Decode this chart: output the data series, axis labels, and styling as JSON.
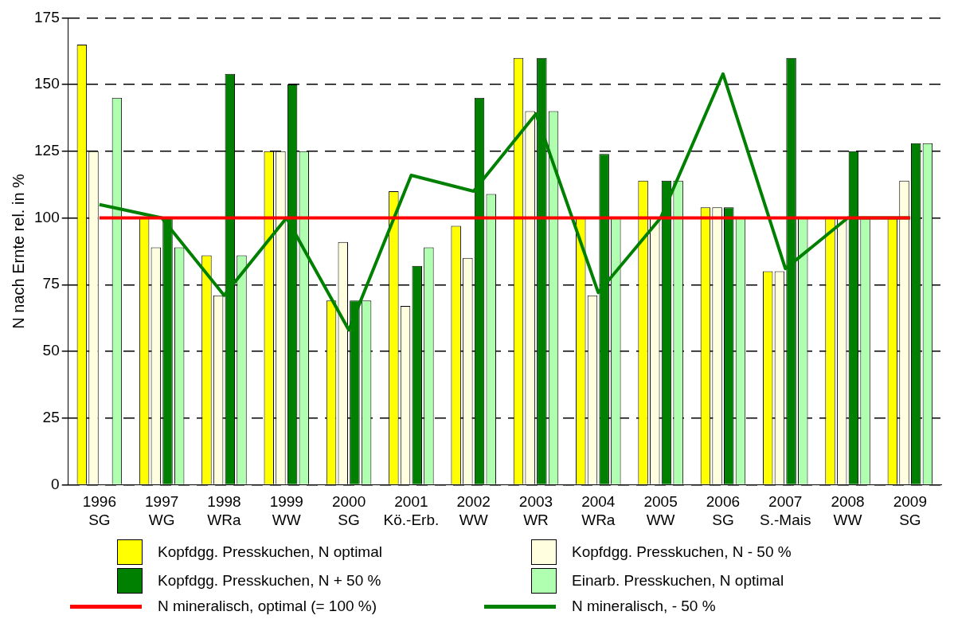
{
  "chart_data": {
    "type": "bar",
    "ylabel": "N nach Ernte rel. in %",
    "categories": [
      "1996\nSG",
      "1997\nWG",
      "1998\nWRa",
      "1999\nWW",
      "2000\nSG",
      "2001\nKö.-Erb.",
      "2002\nWW",
      "2003\nWR",
      "2004\nWRa",
      "2005\nWW",
      "2006\nSG",
      "2007\nS.-Mais",
      "2008\nWW",
      "2009\nSG"
    ],
    "series": [
      {
        "name": "Kopfdgg. Presskuchen, N optimal",
        "color": "#ffff00",
        "values": [
          165,
          100,
          86,
          125,
          69,
          110,
          97,
          160,
          100,
          114,
          104,
          80,
          100,
          100
        ]
      },
      {
        "name": "Kopfdgg. Presskuchen, N - 50 %",
        "color": "#ffffe0",
        "values": [
          125,
          89,
          71,
          125,
          91,
          67,
          85,
          140,
          71,
          100,
          104,
          80,
          100,
          114
        ]
      },
      {
        "name": "Kopfdgg. Presskuchen, N + 50 %",
        "color": "#008000",
        "values": [
          null,
          100,
          154,
          150,
          69,
          82,
          145,
          160,
          124,
          114,
          104,
          160,
          125,
          128
        ]
      },
      {
        "name": "Einarb. Presskuchen, N optimal",
        "color": "#b0ffb0",
        "values": [
          145,
          89,
          86,
          125,
          69,
          89,
          109,
          140,
          100,
          114,
          100,
          100,
          100,
          128
        ]
      },
      {
        "name": "N mineralisch, optimal (= 100 %)",
        "type": "line",
        "color": "#ff0000",
        "values": [
          100,
          100,
          100,
          100,
          100,
          100,
          100,
          100,
          100,
          100,
          100,
          100,
          100,
          100
        ]
      },
      {
        "name": "N mineralisch, - 50 %",
        "type": "line",
        "color": "#008000",
        "values": [
          105,
          100,
          71,
          100,
          58,
          116,
          110,
          139,
          72,
          100,
          154,
          81,
          100,
          100
        ]
      }
    ],
    "ylim": [
      0,
      175
    ],
    "yticks": [
      0,
      25,
      50,
      75,
      100,
      125,
      150,
      175
    ],
    "grid": "y",
    "legend": "bottom",
    "marker": "none"
  }
}
